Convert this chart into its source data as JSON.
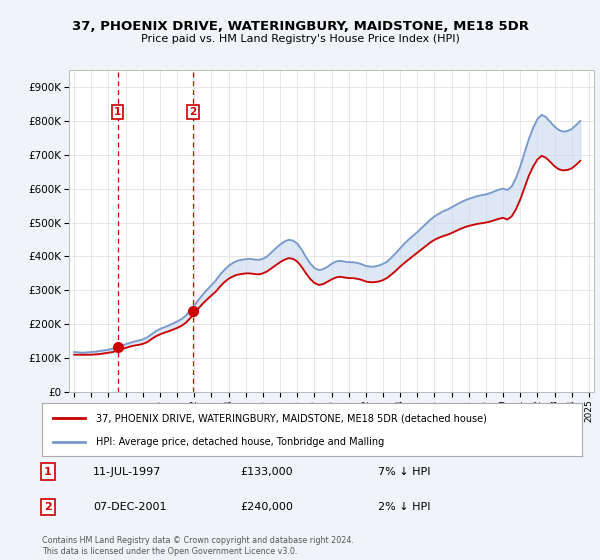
{
  "title1": "37, PHOENIX DRIVE, WATERINGBURY, MAIDSTONE, ME18 5DR",
  "title2": "Price paid vs. HM Land Registry's House Price Index (HPI)",
  "ylabel_ticks": [
    "£0",
    "£100K",
    "£200K",
    "£300K",
    "£400K",
    "£500K",
    "£600K",
    "£700K",
    "£800K",
    "£900K"
  ],
  "ylim": [
    0,
    950000
  ],
  "xlim_start": 1994.7,
  "xlim_end": 2025.3,
  "sale1_date": 1997.53,
  "sale1_price": 133000,
  "sale1_label": "1",
  "sale2_date": 2001.93,
  "sale2_price": 240000,
  "sale2_label": "2",
  "legend_line1": "37, PHOENIX DRIVE, WATERINGBURY, MAIDSTONE, ME18 5DR (detached house)",
  "legend_line2": "HPI: Average price, detached house, Tonbridge and Malling",
  "footer": "Contains HM Land Registry data © Crown copyright and database right 2024.\nThis data is licensed under the Open Government Licence v3.0.",
  "bg_color": "#f0f4f8",
  "plot_bg_color": "#ffffff",
  "red_line_color": "#cc0000",
  "blue_line_color": "#7799cc",
  "fill_color": "#c8d8ee",
  "sale_marker_color": "#cc0000",
  "vline_color": "#cc0000",
  "grid_color": "#dddddd",
  "hpi_data_x": [
    1995.0,
    1995.25,
    1995.5,
    1995.75,
    1996.0,
    1996.25,
    1996.5,
    1996.75,
    1997.0,
    1997.25,
    1997.5,
    1997.75,
    1998.0,
    1998.25,
    1998.5,
    1998.75,
    1999.0,
    1999.25,
    1999.5,
    1999.75,
    2000.0,
    2000.25,
    2000.5,
    2000.75,
    2001.0,
    2001.25,
    2001.5,
    2001.75,
    2002.0,
    2002.25,
    2002.5,
    2002.75,
    2003.0,
    2003.25,
    2003.5,
    2003.75,
    2004.0,
    2004.25,
    2004.5,
    2004.75,
    2005.0,
    2005.25,
    2005.5,
    2005.75,
    2006.0,
    2006.25,
    2006.5,
    2006.75,
    2007.0,
    2007.25,
    2007.5,
    2007.75,
    2008.0,
    2008.25,
    2008.5,
    2008.75,
    2009.0,
    2009.25,
    2009.5,
    2009.75,
    2010.0,
    2010.25,
    2010.5,
    2010.75,
    2011.0,
    2011.25,
    2011.5,
    2011.75,
    2012.0,
    2012.25,
    2012.5,
    2012.75,
    2013.0,
    2013.25,
    2013.5,
    2013.75,
    2014.0,
    2014.25,
    2014.5,
    2014.75,
    2015.0,
    2015.25,
    2015.5,
    2015.75,
    2016.0,
    2016.25,
    2016.5,
    2016.75,
    2017.0,
    2017.25,
    2017.5,
    2017.75,
    2018.0,
    2018.25,
    2018.5,
    2018.75,
    2019.0,
    2019.25,
    2019.5,
    2019.75,
    2020.0,
    2020.25,
    2020.5,
    2020.75,
    2021.0,
    2021.25,
    2021.5,
    2021.75,
    2022.0,
    2022.25,
    2022.5,
    2022.75,
    2023.0,
    2023.25,
    2023.5,
    2023.75,
    2024.0,
    2024.25,
    2024.5
  ],
  "hpi_data_y": [
    118000,
    117000,
    116000,
    117000,
    118000,
    119000,
    121000,
    123000,
    125000,
    128000,
    132000,
    136000,
    141000,
    145000,
    149000,
    152000,
    155000,
    161000,
    170000,
    179000,
    186000,
    191000,
    196000,
    202000,
    208000,
    215000,
    225000,
    239000,
    255000,
    272000,
    288000,
    302000,
    315000,
    329000,
    346000,
    360000,
    372000,
    381000,
    387000,
    390000,
    392000,
    393000,
    391000,
    390000,
    393000,
    400000,
    412000,
    424000,
    435000,
    444000,
    449000,
    447000,
    438000,
    421000,
    399000,
    380000,
    366000,
    360000,
    362000,
    369000,
    378000,
    385000,
    387000,
    385000,
    383000,
    383000,
    381000,
    377000,
    372000,
    370000,
    370000,
    373000,
    378000,
    385000,
    397000,
    410000,
    424000,
    438000,
    450000,
    461000,
    472000,
    484000,
    496000,
    508000,
    518000,
    526000,
    533000,
    538000,
    545000,
    552000,
    559000,
    565000,
    570000,
    574000,
    578000,
    581000,
    583000,
    587000,
    592000,
    597000,
    600000,
    596000,
    606000,
    631000,
    665000,
    706000,
    746000,
    779000,
    805000,
    818000,
    811000,
    797000,
    783000,
    773000,
    768000,
    770000,
    776000,
    787000,
    800000
  ],
  "price_data_x": [
    1995.0,
    1995.25,
    1995.5,
    1995.75,
    1996.0,
    1996.25,
    1996.5,
    1996.75,
    1997.0,
    1997.25,
    1997.5,
    1997.75,
    1998.0,
    1998.25,
    1998.5,
    1998.75,
    1999.0,
    1999.25,
    1999.5,
    1999.75,
    2000.0,
    2000.25,
    2000.5,
    2000.75,
    2001.0,
    2001.25,
    2001.5,
    2001.75,
    2002.0,
    2002.25,
    2002.5,
    2002.75,
    2003.0,
    2003.25,
    2003.5,
    2003.75,
    2004.0,
    2004.25,
    2004.5,
    2004.75,
    2005.0,
    2005.25,
    2005.5,
    2005.75,
    2006.0,
    2006.25,
    2006.5,
    2006.75,
    2007.0,
    2007.25,
    2007.5,
    2007.75,
    2008.0,
    2008.25,
    2008.5,
    2008.75,
    2009.0,
    2009.25,
    2009.5,
    2009.75,
    2010.0,
    2010.25,
    2010.5,
    2010.75,
    2011.0,
    2011.25,
    2011.5,
    2011.75,
    2012.0,
    2012.25,
    2012.5,
    2012.75,
    2013.0,
    2013.25,
    2013.5,
    2013.75,
    2014.0,
    2014.25,
    2014.5,
    2014.75,
    2015.0,
    2015.25,
    2015.5,
    2015.75,
    2016.0,
    2016.25,
    2016.5,
    2016.75,
    2017.0,
    2017.25,
    2017.5,
    2017.75,
    2018.0,
    2018.25,
    2018.5,
    2018.75,
    2019.0,
    2019.25,
    2019.5,
    2019.75,
    2020.0,
    2020.25,
    2020.5,
    2020.75,
    2021.0,
    2021.25,
    2021.5,
    2021.75,
    2022.0,
    2022.25,
    2022.5,
    2022.75,
    2023.0,
    2023.25,
    2023.5,
    2023.75,
    2024.0,
    2024.25,
    2024.5
  ],
  "price_data_y": [
    110000,
    110000,
    110000,
    110000,
    110000,
    111000,
    112000,
    114000,
    116000,
    118000,
    122000,
    126000,
    130000,
    134000,
    137000,
    139000,
    142000,
    147000,
    156000,
    164000,
    170000,
    175000,
    179000,
    184000,
    189000,
    195000,
    204000,
    217000,
    232000,
    247000,
    261000,
    273000,
    285000,
    296000,
    311000,
    324000,
    334000,
    341000,
    346000,
    348000,
    350000,
    350000,
    348000,
    347000,
    350000,
    356000,
    365000,
    374000,
    383000,
    390000,
    395000,
    393000,
    385000,
    370000,
    351000,
    334000,
    322000,
    316000,
    318000,
    325000,
    332000,
    338000,
    340000,
    338000,
    336000,
    336000,
    334000,
    331000,
    326000,
    324000,
    324000,
    326000,
    330000,
    337000,
    347000,
    358000,
    370000,
    381000,
    391000,
    401000,
    411000,
    421000,
    431000,
    441000,
    449000,
    455000,
    460000,
    464000,
    469000,
    475000,
    481000,
    486000,
    490000,
    493000,
    496000,
    498000,
    500000,
    503000,
    507000,
    511000,
    514000,
    509000,
    518000,
    539000,
    568000,
    603000,
    638000,
    665000,
    686000,
    697000,
    691000,
    679000,
    666000,
    657000,
    654000,
    655000,
    660000,
    670000,
    682000
  ]
}
